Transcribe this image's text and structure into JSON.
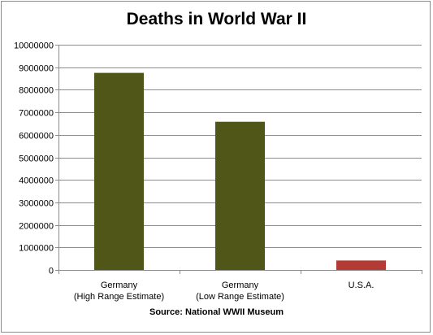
{
  "chart_data": {
    "type": "bar",
    "title": "Deaths in World War II",
    "categories": [
      [
        "Germany",
        "(High Range Estimate)"
      ],
      [
        "Germany",
        "(Low Range Estimate)"
      ],
      [
        "U.S.A."
      ]
    ],
    "values": [
      8750000,
      6580000,
      420000
    ],
    "bar_colors": [
      "#4f5617",
      "#4f5617",
      "#b33a35"
    ],
    "ylim": [
      0,
      10000000
    ],
    "yticks": [
      "0",
      "1000000",
      "2000000",
      "3000000",
      "4000000",
      "5000000",
      "6000000",
      "7000000",
      "8000000",
      "9000000",
      "10000000"
    ],
    "grid": true,
    "legend": "none",
    "source": "Source: National WWII Museum"
  }
}
